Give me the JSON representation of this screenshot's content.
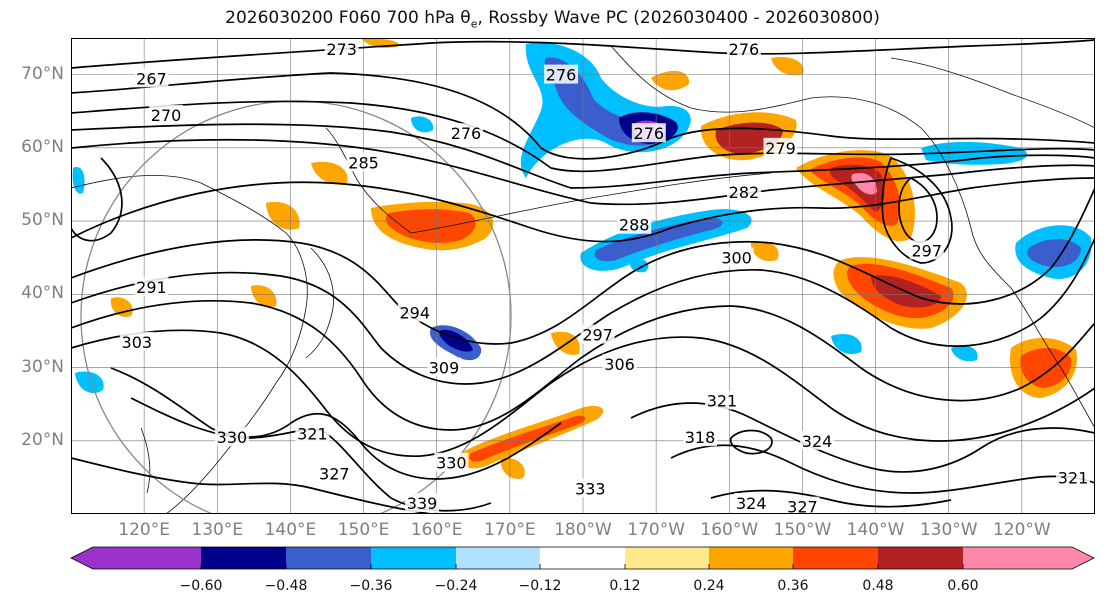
{
  "title": {
    "prefix": "2026030200 F060 700 hPa θ",
    "sub": "e",
    "suffix": ", Rossby Wave PC (2026030400 - 2026030800)"
  },
  "axes": {
    "lat_labels": [
      "70°N",
      "60°N",
      "50°N",
      "40°N",
      "30°N",
      "20°N"
    ],
    "lat_values": [
      70,
      60,
      50,
      40,
      30,
      20
    ],
    "lon_labels": [
      "120°E",
      "130°E",
      "140°E",
      "150°E",
      "160°E",
      "170°E",
      "180°W",
      "170°W",
      "160°W",
      "150°W",
      "140°W",
      "130°W",
      "120°W"
    ],
    "lon_values": [
      120,
      130,
      140,
      150,
      160,
      170,
      180,
      190,
      200,
      210,
      220,
      230,
      240
    ],
    "lon_range": [
      110,
      250
    ],
    "lat_range": [
      10,
      75
    ]
  },
  "colorbar": {
    "ticks": [
      "−0.60",
      "−0.48",
      "−0.36",
      "−0.24",
      "−0.12",
      "0.12",
      "0.24",
      "0.36",
      "0.48",
      "0.60"
    ],
    "colors": [
      "#9a33cc",
      "#00008b",
      "#3a5fcd",
      "#00bfff",
      "#b0e2ff",
      "#ffffff",
      "#ffe98a",
      "#ffa500",
      "#ff4500",
      "#b22222",
      "#ff88aa"
    ]
  },
  "contours": {
    "labels": [
      {
        "text": "273",
        "lon": 147,
        "lat": 73.5
      },
      {
        "text": "276",
        "lon": 202,
        "lat": 73.5
      },
      {
        "text": "267",
        "lon": 121,
        "lat": 69.5
      },
      {
        "text": "276",
        "lon": 177,
        "lat": 70
      },
      {
        "text": "270",
        "lon": 123,
        "lat": 64.5
      },
      {
        "text": "276",
        "lon": 164,
        "lat": 62
      },
      {
        "text": "276",
        "lon": 189,
        "lat": 62
      },
      {
        "text": "279",
        "lon": 207,
        "lat": 60
      },
      {
        "text": "285",
        "lon": 150,
        "lat": 58
      },
      {
        "text": "282",
        "lon": 202,
        "lat": 54
      },
      {
        "text": "288",
        "lon": 187,
        "lat": 49.5
      },
      {
        "text": "300",
        "lon": 201,
        "lat": 45
      },
      {
        "text": "297",
        "lon": 227,
        "lat": 46
      },
      {
        "text": "291",
        "lon": 121,
        "lat": 41
      },
      {
        "text": "294",
        "lon": 157,
        "lat": 37.5
      },
      {
        "text": "297",
        "lon": 182,
        "lat": 34.5
      },
      {
        "text": "303",
        "lon": 119,
        "lat": 33.5
      },
      {
        "text": "306",
        "lon": 185,
        "lat": 30.5
      },
      {
        "text": "309",
        "lon": 161,
        "lat": 30
      },
      {
        "text": "321",
        "lon": 199,
        "lat": 25.5
      },
      {
        "text": "330",
        "lon": 132,
        "lat": 20.5
      },
      {
        "text": "321",
        "lon": 143,
        "lat": 21
      },
      {
        "text": "318",
        "lon": 196,
        "lat": 20.5
      },
      {
        "text": "324",
        "lon": 212,
        "lat": 20
      },
      {
        "text": "330",
        "lon": 162,
        "lat": 17
      },
      {
        "text": "327",
        "lon": 146,
        "lat": 15.5
      },
      {
        "text": "333",
        "lon": 181,
        "lat": 13.5
      },
      {
        "text": "339",
        "lon": 158,
        "lat": 11.5
      },
      {
        "text": "324",
        "lon": 203,
        "lat": 11.5
      },
      {
        "text": "327",
        "lon": 210,
        "lat": 11
      },
      {
        "text": "321",
        "lon": 247,
        "lat": 15
      }
    ]
  }
}
